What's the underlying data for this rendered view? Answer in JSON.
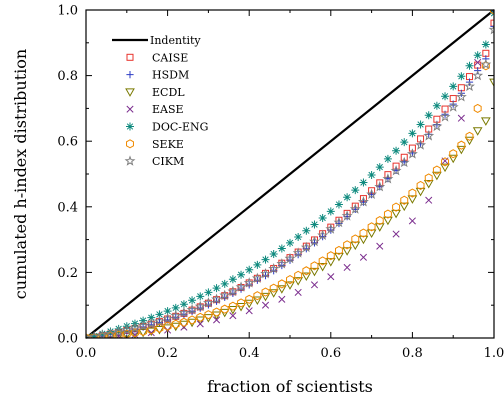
{
  "chart_data": {
    "type": "scatter",
    "title": "",
    "xlabel": "fraction of scientists",
    "ylabel": "cumulated h-index distribution",
    "xlim": [
      0,
      1
    ],
    "ylim": [
      0,
      1
    ],
    "x_ticks": [
      "0.0",
      "0.2",
      "0.4",
      "0.6",
      "0.8",
      "1.0"
    ],
    "y_ticks": [
      "0.0",
      "0.2",
      "0.4",
      "0.6",
      "0.8",
      "1.0"
    ],
    "grid": false,
    "legend_position": "top-left",
    "series": [
      {
        "name": "Indentity",
        "kind": "line",
        "color": "#000000",
        "x": [
          0,
          1
        ],
        "y": [
          0,
          1
        ]
      },
      {
        "name": "CAISE",
        "marker": "square-open",
        "color": "#e8322b",
        "x": [
          0.0,
          0.02,
          0.04,
          0.06,
          0.08,
          0.1,
          0.12,
          0.14,
          0.16,
          0.18,
          0.2,
          0.22,
          0.24,
          0.26,
          0.28,
          0.3,
          0.32,
          0.34,
          0.36,
          0.38,
          0.4,
          0.42,
          0.44,
          0.46,
          0.48,
          0.5,
          0.52,
          0.54,
          0.56,
          0.58,
          0.6,
          0.62,
          0.64,
          0.66,
          0.68,
          0.7,
          0.72,
          0.74,
          0.76,
          0.78,
          0.8,
          0.82,
          0.84,
          0.86,
          0.88,
          0.9,
          0.92,
          0.94,
          0.96,
          0.98,
          1.0
        ],
        "y": [
          0.0,
          0.003,
          0.007,
          0.012,
          0.017,
          0.023,
          0.029,
          0.035,
          0.042,
          0.05,
          0.058,
          0.066,
          0.075,
          0.085,
          0.095,
          0.106,
          0.117,
          0.129,
          0.141,
          0.154,
          0.168,
          0.182,
          0.197,
          0.212,
          0.228,
          0.245,
          0.262,
          0.28,
          0.299,
          0.318,
          0.338,
          0.359,
          0.38,
          0.402,
          0.425,
          0.449,
          0.473,
          0.498,
          0.524,
          0.551,
          0.579,
          0.607,
          0.637,
          0.667,
          0.698,
          0.73,
          0.763,
          0.797,
          0.832,
          0.868,
          0.96
        ]
      },
      {
        "name": "HSDM",
        "marker": "plus",
        "color": "#2b3bc4",
        "x": [
          0.0,
          0.02,
          0.04,
          0.06,
          0.08,
          0.1,
          0.12,
          0.14,
          0.16,
          0.18,
          0.2,
          0.22,
          0.24,
          0.26,
          0.28,
          0.3,
          0.32,
          0.34,
          0.36,
          0.38,
          0.4,
          0.42,
          0.44,
          0.46,
          0.48,
          0.5,
          0.52,
          0.54,
          0.56,
          0.58,
          0.6,
          0.62,
          0.64,
          0.66,
          0.68,
          0.7,
          0.72,
          0.74,
          0.76,
          0.78,
          0.8,
          0.82,
          0.84,
          0.86,
          0.88,
          0.9,
          0.92,
          0.94,
          0.96,
          0.98,
          1.0
        ],
        "y": [
          0.0,
          0.003,
          0.006,
          0.011,
          0.016,
          0.021,
          0.027,
          0.033,
          0.04,
          0.047,
          0.055,
          0.063,
          0.072,
          0.081,
          0.091,
          0.101,
          0.112,
          0.124,
          0.136,
          0.149,
          0.162,
          0.176,
          0.19,
          0.205,
          0.221,
          0.237,
          0.254,
          0.272,
          0.29,
          0.309,
          0.329,
          0.349,
          0.37,
          0.392,
          0.414,
          0.437,
          0.461,
          0.486,
          0.511,
          0.537,
          0.564,
          0.592,
          0.621,
          0.651,
          0.682,
          0.713,
          0.746,
          0.78,
          0.815,
          0.851,
          0.95
        ]
      },
      {
        "name": "ECDL",
        "marker": "triangle-down-open",
        "color": "#7a7a00",
        "x": [
          0.0,
          0.02,
          0.04,
          0.06,
          0.08,
          0.1,
          0.12,
          0.14,
          0.16,
          0.18,
          0.2,
          0.22,
          0.24,
          0.26,
          0.28,
          0.3,
          0.32,
          0.34,
          0.36,
          0.38,
          0.4,
          0.42,
          0.44,
          0.46,
          0.48,
          0.5,
          0.52,
          0.54,
          0.56,
          0.58,
          0.6,
          0.62,
          0.64,
          0.66,
          0.68,
          0.7,
          0.72,
          0.74,
          0.76,
          0.78,
          0.8,
          0.82,
          0.84,
          0.86,
          0.88,
          0.9,
          0.92,
          0.94,
          0.96,
          0.98,
          1.0
        ],
        "y": [
          0.0,
          0.001,
          0.003,
          0.005,
          0.007,
          0.01,
          0.013,
          0.017,
          0.021,
          0.026,
          0.031,
          0.036,
          0.042,
          0.048,
          0.055,
          0.062,
          0.07,
          0.078,
          0.087,
          0.096,
          0.106,
          0.116,
          0.127,
          0.138,
          0.15,
          0.162,
          0.175,
          0.189,
          0.203,
          0.218,
          0.233,
          0.249,
          0.266,
          0.283,
          0.301,
          0.32,
          0.339,
          0.359,
          0.38,
          0.402,
          0.424,
          0.447,
          0.471,
          0.496,
          0.521,
          0.548,
          0.575,
          0.603,
          0.632,
          0.662,
          0.78
        ]
      },
      {
        "name": "EASE",
        "marker": "cross",
        "color": "#7b2d8e",
        "x": [
          0.0,
          0.04,
          0.08,
          0.12,
          0.16,
          0.2,
          0.24,
          0.28,
          0.32,
          0.36,
          0.4,
          0.44,
          0.48,
          0.52,
          0.56,
          0.6,
          0.64,
          0.68,
          0.72,
          0.76,
          0.8,
          0.84,
          0.88,
          0.92,
          0.96,
          1.0
        ],
        "y": [
          0.0,
          0.002,
          0.005,
          0.01,
          0.016,
          0.024,
          0.033,
          0.043,
          0.055,
          0.068,
          0.083,
          0.1,
          0.118,
          0.139,
          0.162,
          0.187,
          0.215,
          0.246,
          0.28,
          0.317,
          0.357,
          0.42,
          0.54,
          0.67,
          0.84,
          1.0
        ]
      },
      {
        "name": "DOC-ENG",
        "marker": "asterisk",
        "color": "#0e8a7e",
        "x": [
          0.0,
          0.02,
          0.04,
          0.06,
          0.08,
          0.1,
          0.12,
          0.14,
          0.16,
          0.18,
          0.2,
          0.22,
          0.24,
          0.26,
          0.28,
          0.3,
          0.32,
          0.34,
          0.36,
          0.38,
          0.4,
          0.42,
          0.44,
          0.46,
          0.48,
          0.5,
          0.52,
          0.54,
          0.56,
          0.58,
          0.6,
          0.62,
          0.64,
          0.66,
          0.68,
          0.7,
          0.72,
          0.74,
          0.76,
          0.78,
          0.8,
          0.82,
          0.84,
          0.86,
          0.88,
          0.9,
          0.92,
          0.94,
          0.96,
          0.98,
          1.0
        ],
        "y": [
          0.0,
          0.006,
          0.013,
          0.02,
          0.028,
          0.036,
          0.044,
          0.053,
          0.062,
          0.072,
          0.082,
          0.092,
          0.103,
          0.115,
          0.127,
          0.139,
          0.152,
          0.165,
          0.179,
          0.193,
          0.208,
          0.223,
          0.239,
          0.256,
          0.273,
          0.29,
          0.308,
          0.327,
          0.346,
          0.366,
          0.386,
          0.407,
          0.429,
          0.451,
          0.474,
          0.497,
          0.521,
          0.546,
          0.571,
          0.597,
          0.624,
          0.651,
          0.679,
          0.708,
          0.737,
          0.767,
          0.798,
          0.83,
          0.862,
          0.895,
          0.99
        ]
      },
      {
        "name": "SEKE",
        "marker": "hexagon-open",
        "color": "#f08a00",
        "x": [
          0.0,
          0.02,
          0.04,
          0.06,
          0.08,
          0.1,
          0.12,
          0.14,
          0.16,
          0.18,
          0.2,
          0.22,
          0.24,
          0.26,
          0.28,
          0.3,
          0.32,
          0.34,
          0.36,
          0.38,
          0.4,
          0.42,
          0.44,
          0.46,
          0.48,
          0.5,
          0.52,
          0.54,
          0.56,
          0.58,
          0.6,
          0.62,
          0.64,
          0.66,
          0.68,
          0.7,
          0.72,
          0.74,
          0.76,
          0.78,
          0.8,
          0.82,
          0.84,
          0.86,
          0.88,
          0.9,
          0.92,
          0.94,
          0.96,
          0.98,
          1.0
        ],
        "y": [
          0.0,
          0.001,
          0.003,
          0.006,
          0.009,
          0.012,
          0.016,
          0.02,
          0.025,
          0.03,
          0.036,
          0.042,
          0.048,
          0.055,
          0.063,
          0.071,
          0.079,
          0.088,
          0.097,
          0.107,
          0.118,
          0.129,
          0.14,
          0.152,
          0.165,
          0.178,
          0.191,
          0.205,
          0.22,
          0.235,
          0.251,
          0.267,
          0.284,
          0.302,
          0.32,
          0.339,
          0.358,
          0.378,
          0.399,
          0.42,
          0.442,
          0.465,
          0.488,
          0.512,
          0.537,
          0.562,
          0.588,
          0.615,
          0.7,
          0.83,
          1.0
        ]
      },
      {
        "name": "CIKM",
        "marker": "star-open",
        "color": "#808080",
        "x": [
          0.0,
          0.02,
          0.04,
          0.06,
          0.08,
          0.1,
          0.12,
          0.14,
          0.16,
          0.18,
          0.2,
          0.22,
          0.24,
          0.26,
          0.28,
          0.3,
          0.32,
          0.34,
          0.36,
          0.38,
          0.4,
          0.42,
          0.44,
          0.46,
          0.48,
          0.5,
          0.52,
          0.54,
          0.56,
          0.58,
          0.6,
          0.62,
          0.64,
          0.66,
          0.68,
          0.7,
          0.72,
          0.74,
          0.76,
          0.78,
          0.8,
          0.82,
          0.84,
          0.86,
          0.88,
          0.9,
          0.92,
          0.94,
          0.96,
          0.98,
          1.0
        ],
        "y": [
          0.0,
          0.004,
          0.008,
          0.013,
          0.018,
          0.024,
          0.03,
          0.037,
          0.044,
          0.051,
          0.059,
          0.068,
          0.077,
          0.086,
          0.096,
          0.107,
          0.118,
          0.13,
          0.142,
          0.155,
          0.168,
          0.182,
          0.196,
          0.211,
          0.226,
          0.242,
          0.259,
          0.276,
          0.294,
          0.313,
          0.332,
          0.352,
          0.372,
          0.393,
          0.415,
          0.438,
          0.461,
          0.485,
          0.51,
          0.535,
          0.561,
          0.588,
          0.616,
          0.645,
          0.674,
          0.704,
          0.735,
          0.767,
          0.8,
          0.834,
          0.94
        ]
      }
    ]
  }
}
